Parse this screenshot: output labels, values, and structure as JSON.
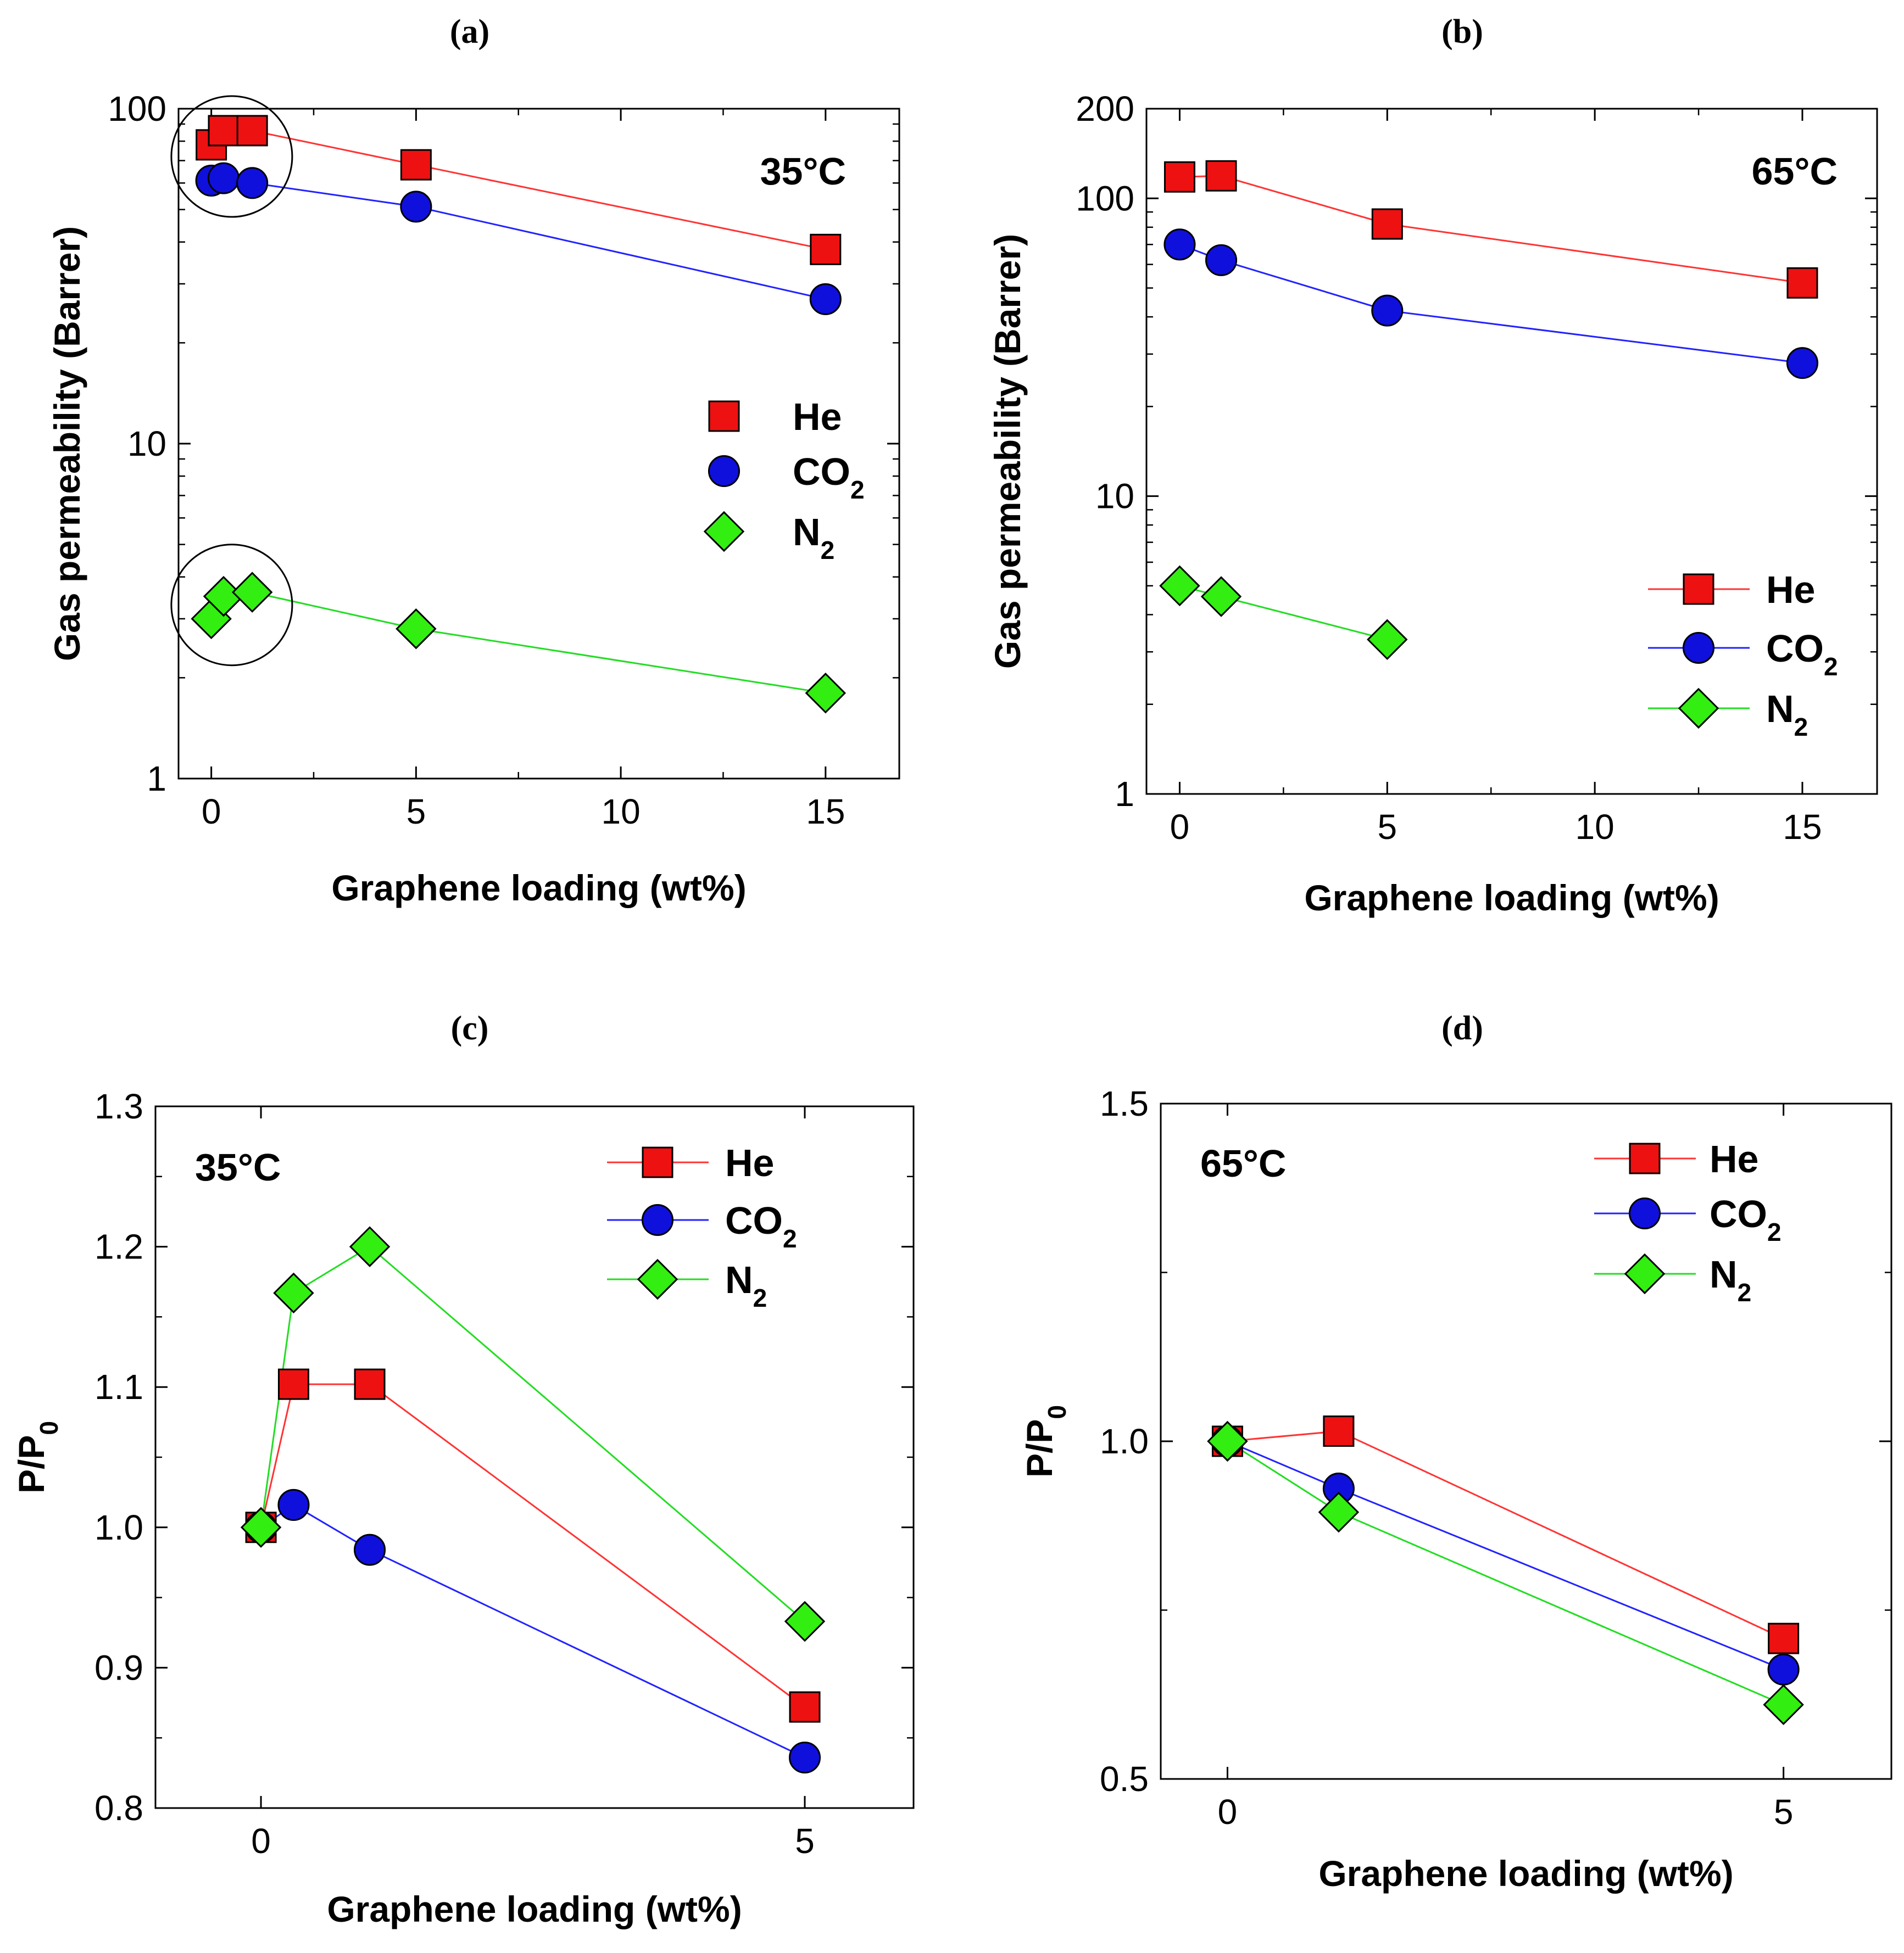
{
  "colors": {
    "He": "#ee1111",
    "CO2": "#1010dd",
    "N2": "#33ee11",
    "He_line": "#ff3333",
    "CO2_line": "#2222ff",
    "N2_line": "#22dd22"
  },
  "chart_data": [
    {
      "type": "line",
      "panel": "(a)",
      "annotation": "35°C",
      "xlabel": "Graphene loading (wt%)",
      "ylabel": "Gas permeability (Barrer)",
      "yscale": "log",
      "xlim": [
        -0.8,
        16.8
      ],
      "ylim": [
        1,
        100
      ],
      "xticks": [
        0,
        5,
        10,
        15
      ],
      "xtick_labels": [
        "0",
        "5",
        "10",
        "15"
      ],
      "yticks": [
        1,
        10,
        100
      ],
      "ytick_labels": [
        "1",
        "10",
        "100"
      ],
      "legend_style": "markers",
      "series": [
        {
          "name": "He",
          "sub": "",
          "marker": "square",
          "x": [
            0,
            0.3,
            1,
            5,
            15
          ],
          "values": [
            78,
            86,
            86,
            68,
            38
          ]
        },
        {
          "name": "CO",
          "sub": "2",
          "marker": "circle",
          "x": [
            0,
            0.3,
            1,
            5,
            15
          ],
          "values": [
            61,
            62,
            60,
            51,
            27
          ]
        },
        {
          "name": "N",
          "sub": "2",
          "marker": "diamond",
          "x": [
            0,
            0.3,
            1,
            5,
            15
          ],
          "values": [
            3.0,
            3.5,
            3.6,
            2.8,
            1.8
          ]
        }
      ],
      "circled_points": [
        {
          "x": 0.5,
          "y": 72
        },
        {
          "x": 0.5,
          "y": 3.3
        }
      ]
    },
    {
      "type": "line",
      "panel": "(b)",
      "annotation": "65°C",
      "xlabel": "Graphene loading (wt%)",
      "ylabel": "Gas permeability (Barrer)",
      "yscale": "log",
      "xlim": [
        -0.8,
        16.8
      ],
      "ylim": [
        1,
        200
      ],
      "xticks": [
        0,
        5,
        10,
        15
      ],
      "xtick_labels": [
        "0",
        "5",
        "10",
        "15"
      ],
      "yticks": [
        1,
        10,
        100,
        200
      ],
      "ytick_labels": [
        "1",
        "10",
        "100",
        "200"
      ],
      "legend_style": "line-marker",
      "series": [
        {
          "name": "He",
          "sub": "",
          "marker": "square",
          "x": [
            0,
            1,
            5,
            15
          ],
          "values": [
            118,
            119,
            82,
            52
          ]
        },
        {
          "name": "CO",
          "sub": "2",
          "marker": "circle",
          "x": [
            0,
            1,
            5,
            15
          ],
          "values": [
            70,
            62,
            42,
            28
          ]
        },
        {
          "name": "N",
          "sub": "2",
          "marker": "diamond",
          "x": [
            0,
            1,
            5
          ],
          "values": [
            5.0,
            4.6,
            3.3
          ]
        }
      ]
    },
    {
      "type": "line",
      "panel": "(c)",
      "annotation": "35°C",
      "xlabel": "Graphene loading (wt%)",
      "ylabel": "P/P",
      "ylabel_sub": "0",
      "yscale": "linear",
      "xlim": [
        -0.97,
        6.0
      ],
      "ylim": [
        0.8,
        1.3
      ],
      "xticks": [
        0,
        5
      ],
      "xtick_labels": [
        "0",
        "5"
      ],
      "yticks": [
        0.8,
        0.9,
        1.0,
        1.1,
        1.2,
        1.3
      ],
      "ytick_labels": [
        "0.8",
        "0.9",
        "1.0",
        "1.1",
        "1.2",
        "1.3"
      ],
      "legend_style": "line-marker",
      "series": [
        {
          "name": "He",
          "sub": "",
          "marker": "square",
          "x": [
            0,
            0.3,
            1,
            5
          ],
          "values": [
            1.0,
            1.102,
            1.102,
            0.872
          ]
        },
        {
          "name": "CO",
          "sub": "2",
          "marker": "circle",
          "x": [
            0,
            0.3,
            1,
            5
          ],
          "values": [
            1.0,
            1.016,
            0.984,
            0.836
          ]
        },
        {
          "name": "N",
          "sub": "2",
          "marker": "diamond",
          "x": [
            0,
            0.3,
            1,
            5
          ],
          "values": [
            1.0,
            1.167,
            1.2,
            0.933
          ]
        }
      ]
    },
    {
      "type": "line",
      "panel": "(d)",
      "annotation": "65°C",
      "xlabel": "Graphene loading (wt%)",
      "ylabel": "P/P",
      "ylabel_sub": "0",
      "yscale": "linear",
      "xlim": [
        -0.6,
        5.97
      ],
      "ylim": [
        0.5,
        1.5
      ],
      "xticks": [
        0,
        5
      ],
      "xtick_labels": [
        "0",
        "5"
      ],
      "yticks": [
        0.5,
        1.0,
        1.5
      ],
      "ytick_labels": [
        "0.5",
        "1.0",
        "1.5"
      ],
      "legend_style": "line-marker",
      "series": [
        {
          "name": "He",
          "sub": "",
          "marker": "square",
          "x": [
            0,
            1,
            5
          ],
          "values": [
            1.0,
            1.015,
            0.708
          ]
        },
        {
          "name": "CO",
          "sub": "2",
          "marker": "circle",
          "x": [
            0,
            1,
            5
          ],
          "values": [
            1.0,
            0.93,
            0.662
          ]
        },
        {
          "name": "N",
          "sub": "2",
          "marker": "diamond",
          "x": [
            0,
            1,
            5
          ],
          "values": [
            1.0,
            0.895,
            0.61
          ]
        }
      ]
    }
  ]
}
